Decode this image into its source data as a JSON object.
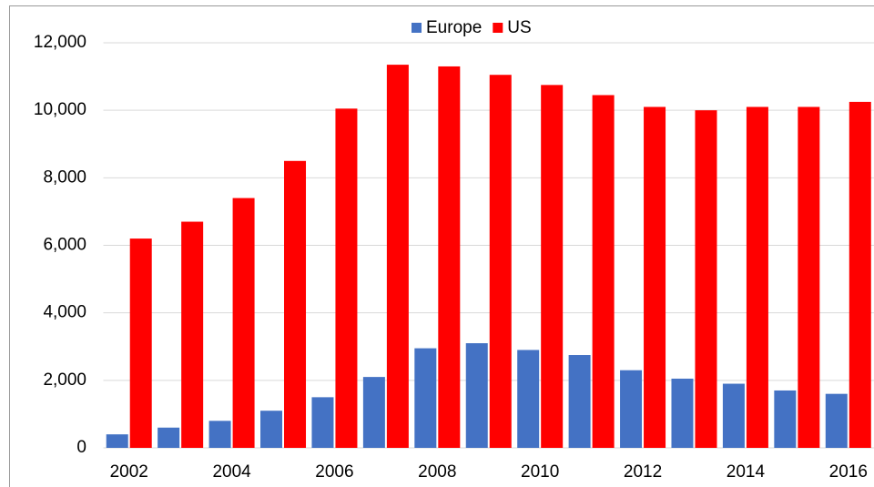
{
  "chart_data": {
    "type": "bar",
    "categories": [
      "2002",
      null,
      "2004",
      null,
      "2006",
      null,
      "2008",
      null,
      "2010",
      null,
      "2012",
      null,
      "2014",
      null,
      "2016"
    ],
    "series": [
      {
        "name": "Europe",
        "color": "#4472c4",
        "values": [
          400,
          600,
          800,
          1100,
          1500,
          2100,
          2950,
          3100,
          2900,
          2750,
          2300,
          2050,
          1900,
          1700,
          1600
        ]
      },
      {
        "name": "US",
        "color": "#ff0000",
        "values": [
          6200,
          6700,
          7400,
          8500,
          10050,
          11350,
          11300,
          11050,
          10750,
          10450,
          10100,
          10000,
          10100,
          10100,
          10250
        ]
      }
    ],
    "ylim": [
      0,
      12000
    ],
    "yticks": [
      0,
      {
        "value": 2000,
        "label": "2,000"
      },
      {
        "value": 4000,
        "label": "4,000"
      },
      {
        "value": 6000,
        "label": "6,000"
      },
      {
        "value": 8000,
        "label": "8,000"
      },
      {
        "value": 10000,
        "label": "10,000"
      },
      {
        "value": 12000,
        "label": "12,000"
      }
    ],
    "grid": true,
    "legend": "top"
  }
}
